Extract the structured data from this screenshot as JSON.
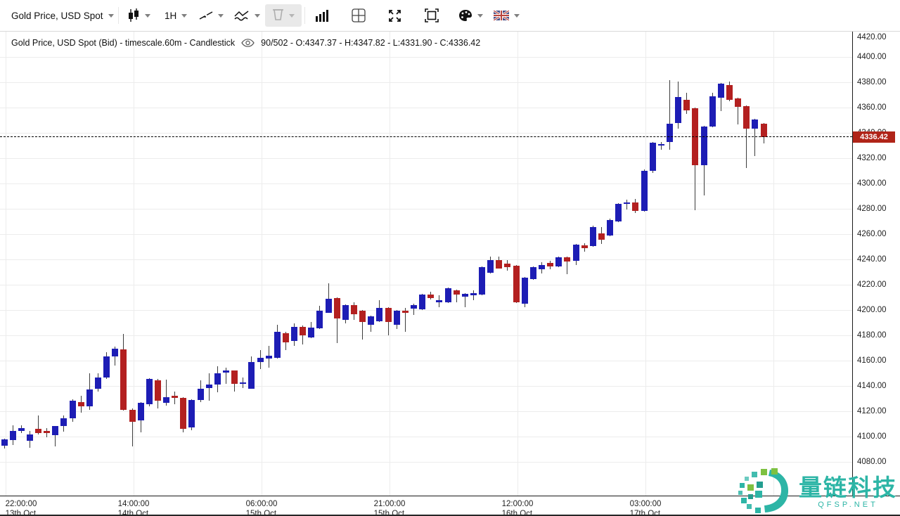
{
  "toolbar": {
    "symbol": "Gold Price, USD Spot",
    "timeframe": "1H",
    "icons": {
      "chart-type": "candlestick glyph",
      "trendline-tool": "diagonal line with tick",
      "indicators-tool": "zigzag over wave",
      "delete-tool": "cup/trash outline (disabled)",
      "volume": "ascending histogram bars",
      "layout-grid": "window split square",
      "fullscreen": "four outward arrows",
      "fit-content": "corner brackets frame",
      "theme-palette": "paint palette",
      "language": "UK flag"
    }
  },
  "info_bar": {
    "series_label": "Gold Price, USD Spot (Bid) - timescale.60m - Candlestick",
    "ohlc_label": "90/502 - O:4347.37 - H:4347.82 - L:4331.90 - C:4336.42"
  },
  "price_axis": {
    "ticks": [
      "4420.00",
      "4400.00",
      "4380.00",
      "4360.00",
      "4340.00",
      "4320.00",
      "4300.00",
      "4280.00",
      "4260.00",
      "4240.00",
      "4220.00",
      "4200.00",
      "4180.00",
      "4160.00",
      "4140.00",
      "4120.00",
      "4100.00",
      "4080.00"
    ],
    "current_price_label": "4336.42",
    "label_bg": "#b02418"
  },
  "watermark": {
    "title": "量链科技",
    "subtitle": "QFSP.NET",
    "teal": "#2db5a6",
    "green": "#7ec141"
  },
  "chart_data": {
    "type": "candlestick",
    "title": "Gold Price, USD Spot (Bid)",
    "timescale": "60m",
    "visible_range_label": "90/502",
    "current_price": 4336.42,
    "last_candle": {
      "o": 4347.37,
      "h": 4347.82,
      "l": 4331.9,
      "c": 4336.42
    },
    "y_axis": {
      "min": 4080,
      "max": 4420,
      "step": 20,
      "grid": true
    },
    "x_ticks": [
      {
        "x": 8,
        "time": "22:00:00",
        "date": "13th Oct"
      },
      {
        "x": 190,
        "time": "14:00:00",
        "date": "14th Oct"
      },
      {
        "x": 372,
        "time": "06:00:00",
        "date": "15th Oct"
      },
      {
        "x": 554,
        "time": "21:00:00",
        "date": "15th Oct"
      },
      {
        "x": 736,
        "time": "12:00:00",
        "date": "16th Oct"
      },
      {
        "x": 918,
        "time": "03:00:00",
        "date": "17th Oct"
      },
      {
        "x": 1100
      }
    ],
    "up_color": "#1d1db5",
    "down_color": "#b32020",
    "wick_color": "#3c3c3c",
    "candles": [
      [
        4093,
        4098.5,
        4090.5,
        4098
      ],
      [
        4097,
        4109,
        4093.5,
        4104.5
      ],
      [
        4104.5,
        4109,
        4102.5,
        4106.5
      ],
      [
        4096.5,
        4104.5,
        4091,
        4101.5
      ],
      [
        4106,
        4116.5,
        4101.5,
        4102.5
      ],
      [
        4104.5,
        4106.5,
        4099.5,
        4103
      ],
      [
        4101,
        4108.5,
        4092,
        4108.5
      ],
      [
        4108.5,
        4116.5,
        4104,
        4114.5
      ],
      [
        4114.5,
        4129.5,
        4111.5,
        4128.5
      ],
      [
        4127,
        4132,
        4119,
        4124
      ],
      [
        4124,
        4150,
        4121,
        4137
      ],
      [
        4138,
        4150,
        4135.5,
        4146.5
      ],
      [
        4146.5,
        4166.5,
        4145.5,
        4163.5
      ],
      [
        4163.5,
        4171,
        4156,
        4169.5
      ],
      [
        4169,
        4181,
        4120.5,
        4121
      ],
      [
        4121,
        4122,
        4092,
        4111.5
      ],
      [
        4112.5,
        4127.5,
        4103.5,
        4126.5
      ],
      [
        4125.5,
        4146,
        4124,
        4145.5
      ],
      [
        4144.5,
        4145.5,
        4122,
        4128.5
      ],
      [
        4126.5,
        4145,
        4124.5,
        4131
      ],
      [
        4132,
        4135.5,
        4125.5,
        4130.5
      ],
      [
        4130.5,
        4131,
        4103.5,
        4106
      ],
      [
        4107,
        4129.5,
        4105,
        4129
      ],
      [
        4129,
        4144.5,
        4127,
        4138
      ],
      [
        4138.5,
        4150,
        4128.5,
        4141
      ],
      [
        4141,
        4155.5,
        4135,
        4150
      ],
      [
        4150.5,
        4154.5,
        4141.5,
        4152
      ],
      [
        4152,
        4152.5,
        4135.5,
        4141.5
      ],
      [
        4141.5,
        4146.5,
        4138.5,
        4143
      ],
      [
        4138,
        4163.5,
        4137.5,
        4159
      ],
      [
        4159,
        4168.5,
        4153.5,
        4162
      ],
      [
        4161.5,
        4171.5,
        4154.5,
        4164
      ],
      [
        4162,
        4188.5,
        4161.5,
        4183
      ],
      [
        4181.5,
        4183,
        4168.5,
        4174.5
      ],
      [
        4175.5,
        4189.5,
        4171.5,
        4186.5
      ],
      [
        4186.5,
        4188,
        4173,
        4180
      ],
      [
        4178.5,
        4190.5,
        4178,
        4186
      ],
      [
        4185.5,
        4203.5,
        4185,
        4199.5
      ],
      [
        4198,
        4221,
        4197.5,
        4209
      ],
      [
        4209.5,
        4210,
        4174,
        4193.5
      ],
      [
        4192,
        4204.5,
        4189.5,
        4204
      ],
      [
        4204,
        4206,
        4192,
        4196.5
      ],
      [
        4199.5,
        4200,
        4176.5,
        4190.5
      ],
      [
        4188.5,
        4195.5,
        4183,
        4195
      ],
      [
        4191,
        4208,
        4190.5,
        4201.5
      ],
      [
        4201.5,
        4202,
        4180,
        4190.5
      ],
      [
        4188.5,
        4200,
        4185,
        4199.5
      ],
      [
        4199.5,
        4201.5,
        4183,
        4198
      ],
      [
        4201,
        4205,
        4196,
        4204
      ],
      [
        4200.5,
        4213,
        4200,
        4212
      ],
      [
        4212,
        4214.5,
        4208.5,
        4209.5
      ],
      [
        4206,
        4211.5,
        4202,
        4208
      ],
      [
        4206,
        4218,
        4205.5,
        4217
      ],
      [
        4215.5,
        4216,
        4206,
        4212
      ],
      [
        4210.5,
        4213.5,
        4202,
        4213
      ],
      [
        4211.5,
        4215.5,
        4207.5,
        4213.5
      ],
      [
        4212,
        4234.5,
        4211.5,
        4234
      ],
      [
        4229.5,
        4242,
        4229,
        4239.5
      ],
      [
        4239.5,
        4242,
        4232.5,
        4233
      ],
      [
        4236.5,
        4239.5,
        4231,
        4234
      ],
      [
        4235,
        4235.5,
        4205.5,
        4206
      ],
      [
        4205,
        4226,
        4202,
        4225.5
      ],
      [
        4224.5,
        4234.5,
        4224,
        4234
      ],
      [
        4232,
        4238,
        4229,
        4235.5
      ],
      [
        4237.5,
        4239,
        4232,
        4234.5
      ],
      [
        4234.5,
        4242.5,
        4234,
        4241.5
      ],
      [
        4241.5,
        4242,
        4228.5,
        4238.5
      ],
      [
        4239,
        4252.5,
        4235.5,
        4251.5
      ],
      [
        4251,
        4253,
        4246,
        4249
      ],
      [
        4250.5,
        4266.5,
        4250,
        4265.5
      ],
      [
        4260.5,
        4265.5,
        4252,
        4255.5
      ],
      [
        4259,
        4272,
        4258.5,
        4271
      ],
      [
        4270,
        4284.5,
        4269.5,
        4284
      ],
      [
        4284,
        4287,
        4279.5,
        4285
      ],
      [
        4285,
        4288,
        4276.5,
        4278.5
      ],
      [
        4278.5,
        4311,
        4278,
        4310
      ],
      [
        4310,
        4333,
        4308.5,
        4332
      ],
      [
        4330.5,
        4333,
        4326.5,
        4331
      ],
      [
        4333,
        4381.5,
        4326.5,
        4347.5
      ],
      [
        4347.5,
        4380.5,
        4343.5,
        4368.5
      ],
      [
        4366,
        4371.5,
        4355,
        4358
      ],
      [
        4359.5,
        4360,
        4279,
        4314.5
      ],
      [
        4314.5,
        4345.5,
        4290.5,
        4345
      ],
      [
        4345,
        4371.5,
        4344.5,
        4369
      ],
      [
        4368,
        4379.5,
        4357,
        4379
      ],
      [
        4378,
        4380.5,
        4365,
        4366
      ],
      [
        4367.5,
        4368,
        4346.5,
        4360.5
      ],
      [
        4361,
        4361.5,
        4312,
        4343.5
      ],
      [
        4343.5,
        4351,
        4321.5,
        4350.5
      ],
      [
        4347.37,
        4347.82,
        4331.9,
        4336.42
      ]
    ]
  }
}
